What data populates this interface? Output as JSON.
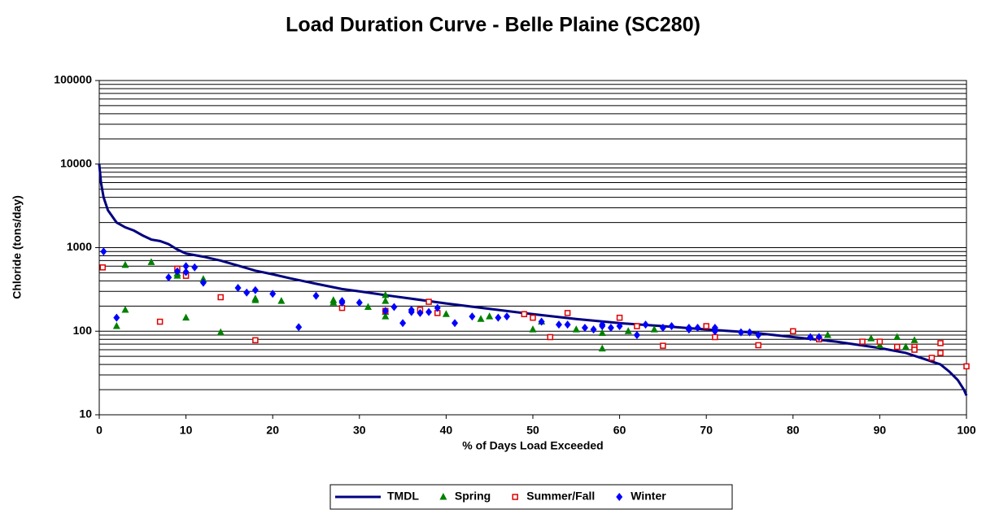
{
  "chart_data": {
    "type": "line",
    "title": "Load Duration Curve - Belle Plaine (SC280)",
    "x_label": "% of Days Load Exceeded",
    "y_label": "Chloride (tons/day)",
    "xlim": [
      0,
      100
    ],
    "xticks": [
      0,
      10,
      20,
      30,
      40,
      50,
      60,
      70,
      80,
      90,
      100
    ],
    "ylim": [
      10,
      100000
    ],
    "yticks": [
      10,
      100,
      1000,
      10000,
      100000
    ],
    "y_scale": "log",
    "grid": true,
    "minor_grid": true,
    "legend": "bottom",
    "series": [
      {
        "name": "TMDL",
        "type": "line",
        "color": "#000080",
        "x": [
          0,
          0.2,
          0.5,
          1,
          2,
          3,
          4,
          5,
          6,
          7,
          8,
          9,
          10,
          12,
          14,
          16,
          18,
          20,
          22,
          25,
          28,
          30,
          33,
          36,
          40,
          45,
          50,
          55,
          60,
          65,
          70,
          75,
          80,
          85,
          90,
          93,
          95,
          97,
          98,
          99,
          99.7,
          100
        ],
        "values": [
          10000,
          6000,
          4000,
          2800,
          2000,
          1750,
          1600,
          1400,
          1250,
          1200,
          1100,
          950,
          850,
          780,
          700,
          610,
          530,
          480,
          430,
          370,
          320,
          300,
          270,
          245,
          215,
          185,
          160,
          140,
          125,
          115,
          105,
          97,
          85,
          75,
          63,
          55,
          47,
          40,
          33,
          26,
          20,
          17
        ]
      },
      {
        "name": "Spring",
        "type": "scatter",
        "marker": "triangle",
        "color": "#008000",
        "x": [
          2,
          3,
          3,
          6,
          9,
          9,
          10,
          12,
          14,
          18,
          18,
          21,
          27,
          27,
          31,
          33,
          33,
          33,
          33,
          40,
          44,
          45,
          50,
          51,
          55,
          58,
          58,
          61,
          64,
          84,
          89,
          90,
          92,
          93,
          94
        ],
        "values": [
          115,
          180,
          620,
          670,
          460,
          490,
          145,
          420,
          97,
          235,
          245,
          230,
          220,
          235,
          195,
          150,
          170,
          230,
          270,
          160,
          140,
          150,
          105,
          130,
          105,
          95,
          62,
          100,
          105,
          90,
          82,
          68,
          85,
          65,
          78
        ]
      },
      {
        "name": "Summer/Fall",
        "type": "scatter",
        "marker": "square",
        "color": "#e00000",
        "x": [
          0.4,
          7,
          9,
          10,
          14,
          18,
          28,
          33,
          37,
          38,
          39,
          49,
          50,
          52,
          54,
          60,
          62,
          65,
          70,
          71,
          76,
          80,
          83,
          88,
          90,
          92,
          94,
          94,
          96,
          97,
          97,
          100
        ],
        "values": [
          580,
          130,
          560,
          460,
          255,
          78,
          190,
          175,
          180,
          225,
          165,
          160,
          145,
          85,
          165,
          145,
          115,
          67,
          115,
          85,
          68,
          100,
          80,
          75,
          75,
          65,
          65,
          60,
          48,
          55,
          72,
          38
        ]
      },
      {
        "name": "Winter",
        "type": "scatter",
        "marker": "diamond",
        "color": "#0000ff",
        "x": [
          0.5,
          2,
          8,
          9,
          10,
          10,
          11,
          12,
          16,
          17,
          18,
          20,
          23,
          25,
          28,
          28,
          30,
          33,
          34,
          35,
          36,
          36,
          37,
          38,
          39,
          41,
          43,
          46,
          47,
          51,
          53,
          54,
          56,
          57,
          58,
          58,
          59,
          60,
          62,
          63,
          65,
          66,
          68,
          68,
          69,
          71,
          71,
          74,
          75,
          76,
          82,
          83
        ],
        "values": [
          900,
          145,
          440,
          520,
          510,
          600,
          580,
          380,
          330,
          290,
          310,
          280,
          112,
          265,
          220,
          230,
          220,
          175,
          195,
          125,
          170,
          180,
          165,
          170,
          190,
          125,
          150,
          145,
          150,
          130,
          120,
          120,
          110,
          105,
          115,
          120,
          110,
          115,
          90,
          120,
          110,
          115,
          105,
          110,
          110,
          110,
          100,
          97,
          97,
          90,
          85,
          85
        ]
      }
    ]
  }
}
